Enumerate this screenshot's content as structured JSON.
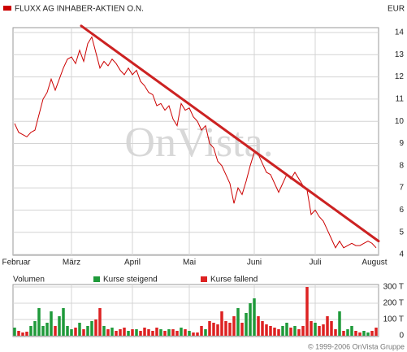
{
  "chart_data": [
    {
      "type": "line",
      "y_label": "EUR",
      "categories": [
        "Februar",
        null,
        null,
        null,
        null,
        null,
        null,
        null,
        null,
        null,
        null,
        null,
        null,
        null,
        "März",
        null,
        null,
        null,
        null,
        null,
        null,
        null,
        null,
        null,
        null,
        null,
        null,
        null,
        null,
        "April",
        null,
        null,
        null,
        null,
        null,
        null,
        null,
        null,
        null,
        null,
        null,
        null,
        null,
        "Mai",
        null,
        null,
        null,
        null,
        null,
        null,
        null,
        null,
        null,
        null,
        null,
        null,
        null,
        null,
        null,
        "Juni",
        null,
        null,
        null,
        null,
        null,
        null,
        null,
        null,
        null,
        null,
        null,
        null,
        null,
        null,
        "Juli",
        null,
        null,
        null,
        null,
        null,
        null,
        null,
        null,
        null,
        null,
        null,
        null,
        null,
        null,
        "August"
      ],
      "series": [
        {
          "name": "FLUXX AG INHABER-AKTIEN O.N.",
          "color": "#cc0000",
          "values": [
            9.9,
            9.5,
            9.4,
            9.3,
            9.5,
            9.6,
            10.3,
            11.0,
            11.3,
            11.9,
            11.4,
            11.9,
            12.4,
            12.8,
            12.9,
            12.6,
            13.2,
            12.7,
            13.5,
            13.8,
            13.1,
            12.4,
            12.7,
            12.5,
            12.8,
            12.6,
            12.3,
            12.1,
            12.4,
            12.1,
            12.3,
            11.8,
            11.6,
            11.3,
            11.2,
            10.7,
            10.8,
            10.5,
            10.7,
            10.1,
            9.8,
            10.8,
            10.5,
            10.6,
            10.2,
            10.0,
            9.6,
            9.8,
            9.0,
            8.8,
            8.2,
            8.0,
            7.6,
            7.2,
            6.3,
            7.0,
            6.7,
            7.3,
            8.0,
            8.6,
            8.5,
            8.1,
            7.7,
            7.6,
            7.2,
            6.8,
            7.2,
            7.6,
            7.4,
            7.7,
            7.4,
            7.1,
            6.9,
            5.8,
            6.0,
            5.7,
            5.5,
            5.1,
            4.7,
            4.3,
            4.6,
            4.3,
            4.4,
            4.5,
            4.4,
            4.4,
            4.5,
            4.6,
            4.5,
            4.3
          ]
        }
      ],
      "trend_line": {
        "color": "#cc2222",
        "values": [
          14.3,
          4.6
        ]
      },
      "ylim": [
        4,
        14
      ],
      "yticks": [
        4,
        5,
        6,
        7,
        8,
        9,
        10,
        11,
        12,
        13,
        14
      ],
      "grid": true
    },
    {
      "type": "bar",
      "title": "Volumen",
      "series": [
        {
          "name": "Kurse steigend",
          "color": "#1f9a3a",
          "values": [
            50,
            null,
            null,
            null,
            60,
            90,
            170,
            60,
            80,
            150,
            null,
            120,
            170,
            60,
            40,
            null,
            80,
            null,
            60,
            90,
            null,
            null,
            60,
            null,
            50,
            null,
            null,
            null,
            30,
            null,
            40,
            null,
            null,
            null,
            null,
            null,
            40,
            null,
            40,
            null,
            null,
            50,
            null,
            30,
            null,
            null,
            null,
            40,
            null,
            null,
            null,
            null,
            null,
            null,
            null,
            170,
            null,
            140,
            200,
            230,
            null,
            null,
            null,
            null,
            null,
            null,
            60,
            80,
            null,
            60,
            null,
            null,
            null,
            null,
            80,
            null,
            null,
            null,
            null,
            null,
            150,
            null,
            40,
            60,
            null,
            null,
            30,
            20,
            null,
            null
          ]
        },
        {
          "name": "Kurse fallend",
          "color": "#dd2222",
          "values": [
            null,
            30,
            20,
            25,
            null,
            null,
            null,
            null,
            null,
            null,
            60,
            null,
            null,
            null,
            null,
            50,
            null,
            40,
            null,
            null,
            100,
            170,
            null,
            40,
            null,
            30,
            40,
            50,
            null,
            40,
            null,
            30,
            50,
            40,
            30,
            50,
            null,
            30,
            null,
            40,
            30,
            null,
            40,
            null,
            20,
            20,
            60,
            null,
            90,
            80,
            70,
            150,
            90,
            80,
            120,
            null,
            80,
            null,
            null,
            null,
            120,
            90,
            70,
            60,
            50,
            40,
            null,
            null,
            50,
            null,
            40,
            60,
            300,
            90,
            null,
            60,
            70,
            120,
            90,
            40,
            null,
            30,
            null,
            null,
            30,
            20,
            null,
            null,
            30,
            50
          ]
        }
      ],
      "ylim": [
        0,
        300
      ],
      "yticks": [
        0,
        {
          "value": 100,
          "label": "100 T"
        },
        {
          "value": 200,
          "label": "200 T"
        },
        {
          "value": 300,
          "label": "300 T"
        }
      ],
      "grid": true
    }
  ],
  "watermark": "OnVista.",
  "copyright": "© 1999-2006 OnVista Gruppe"
}
